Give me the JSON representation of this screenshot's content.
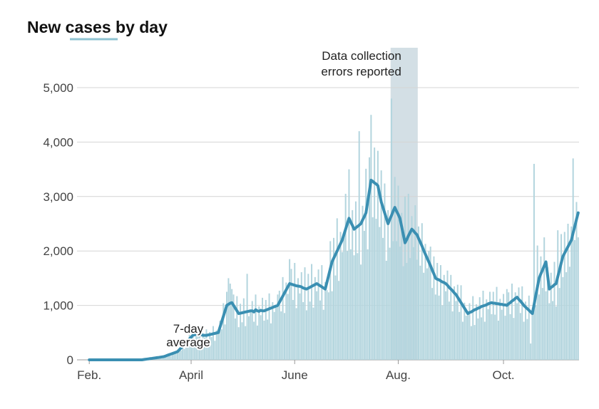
{
  "chart_data": {
    "type": "bar",
    "title": "New cases by day",
    "categories": [
      "Feb.",
      null,
      null,
      null,
      null,
      null,
      null,
      null,
      null,
      null,
      null,
      null,
      null,
      null,
      null,
      null,
      null,
      null,
      null,
      null,
      null,
      null,
      null,
      null,
      null,
      null,
      null,
      null,
      null,
      null,
      null,
      null,
      null,
      null,
      null,
      null,
      null,
      null,
      null,
      null,
      null,
      null,
      null,
      null,
      null,
      null,
      null,
      null,
      null,
      null,
      null,
      null,
      null,
      null,
      null,
      null,
      null,
      null,
      null,
      null,
      "April",
      null,
      null,
      null,
      null,
      null,
      null,
      null,
      null,
      null,
      null,
      null,
      null,
      null,
      null,
      null,
      null,
      null,
      null,
      null,
      null,
      null,
      null,
      null,
      null,
      null,
      null,
      null,
      null,
      null,
      null,
      null,
      null,
      null,
      null,
      null,
      null,
      null,
      null,
      null,
      null,
      null,
      null,
      null,
      null,
      null,
      null,
      null,
      null,
      null,
      null,
      null,
      null,
      null,
      null,
      null,
      null,
      null,
      null,
      null,
      null,
      "June",
      null,
      null,
      null,
      null,
      null,
      null,
      null,
      null,
      null,
      null,
      null,
      null,
      null,
      null,
      null,
      null,
      null,
      null,
      null,
      null,
      null,
      null,
      null,
      null,
      null,
      null,
      null,
      null,
      null,
      null,
      null,
      null,
      null,
      null,
      null,
      null,
      null,
      null,
      null,
      null,
      null,
      null,
      null,
      null,
      null,
      null,
      null,
      null,
      null,
      null,
      null,
      null,
      null,
      null,
      null,
      null,
      null,
      null,
      null,
      null,
      "Aug.",
      null,
      null,
      null,
      null,
      null,
      null,
      null,
      null,
      null,
      null,
      null,
      null,
      null,
      null,
      null,
      null,
      null,
      null,
      null,
      null,
      null,
      null,
      null,
      null,
      null,
      null,
      null,
      null,
      null,
      null,
      null,
      null,
      null,
      null,
      null,
      null,
      null,
      null,
      null,
      null,
      null,
      null,
      null,
      null,
      null,
      null,
      null,
      null,
      null,
      null,
      null,
      null,
      null,
      null,
      null,
      null,
      null,
      null,
      null,
      null,
      null,
      "Oct.",
      null,
      null,
      null,
      null,
      null,
      null,
      null,
      null,
      null,
      null,
      null,
      null,
      null,
      null,
      null,
      null,
      null,
      null,
      null,
      null,
      null,
      null,
      null,
      null,
      null,
      null,
      null,
      null,
      null,
      null,
      null,
      null,
      null,
      null,
      null,
      null,
      null,
      null,
      null,
      null,
      null,
      null,
      null,
      null
    ],
    "daily": {
      "color": "#b3d5de",
      "values": [
        0,
        0,
        0,
        0,
        0,
        0,
        0,
        0,
        0,
        0,
        0,
        0,
        0,
        0,
        0,
        0,
        0,
        0,
        0,
        0,
        0,
        0,
        0,
        0,
        0,
        0,
        0,
        0,
        0,
        0,
        0,
        0,
        0,
        10,
        20,
        10,
        30,
        20,
        40,
        30,
        50,
        40,
        60,
        50,
        70,
        90,
        60,
        120,
        70,
        140,
        110,
        150,
        160,
        200,
        170,
        320,
        200,
        350,
        380,
        460,
        330,
        540,
        320,
        520,
        430,
        620,
        370,
        490,
        410,
        560,
        380,
        510,
        420,
        620,
        350,
        540,
        480,
        720,
        560,
        1040,
        650,
        1250,
        1500,
        1400,
        1300,
        1200,
        760,
        1170,
        600,
        1030,
        690,
        1130,
        620,
        1580,
        800,
        900,
        1080,
        700,
        1200,
        630,
        980,
        820,
        1140,
        720,
        1100,
        740,
        1220,
        670,
        1060,
        880,
        990,
        1200,
        1270,
        890,
        1520,
        860,
        1420,
        1210,
        1850,
        1670,
        1100,
        1780,
        950,
        1500,
        1220,
        1610,
        1060,
        1700,
        910,
        1580,
        1070,
        1760,
        960,
        1520,
        1260,
        1660,
        1090,
        1740,
        920,
        1430,
        1280,
        1240,
        2180,
        1260,
        2240,
        1550,
        2600,
        1450,
        2350,
        1980,
        2300,
        3050,
        2000,
        3500,
        2030,
        2750,
        1920,
        2910,
        1960,
        4200,
        1750,
        2830,
        2370,
        3510,
        2030,
        3720,
        4500,
        2620,
        3900,
        2590,
        3840,
        2440,
        3480,
        2240,
        3240,
        1820,
        2750,
        2060,
        4800,
        2180,
        3360,
        2180,
        3200,
        2080,
        2700,
        1720,
        3000,
        1780,
        3050,
        1870,
        2640,
        2070,
        2840,
        1840,
        2450,
        1730,
        2510,
        1600,
        2130,
        1680,
        2000,
        2080,
        1320,
        1900,
        1200,
        1780,
        1180,
        1740,
        1000,
        1560,
        1260,
        1640,
        1070,
        1560,
        890,
        1350,
        1080,
        1380,
        880,
        1370,
        700,
        1050,
        810,
        850,
        1040,
        620,
        1170,
        640,
        1020,
        760,
        1150,
        780,
        1270,
        700,
        1110,
        930,
        1250,
        840,
        1250,
        830,
        1340,
        720,
        1120,
        920,
        1210,
        810,
        1300,
        1240,
        840,
        1400,
        770,
        1240,
        1040,
        1330,
        860,
        1350,
        700,
        1070,
        750,
        1180,
        300,
        940,
        3600,
        1000,
        2100,
        1200,
        1900,
        1320,
        2250,
        1260,
        1700,
        1040,
        1600,
        1080,
        1800,
        980,
        2380,
        1320,
        2310,
        1520,
        2350,
        1610,
        2500,
        1710,
        2450,
        3700,
        2200,
        2900,
        2250
      ]
    },
    "average": {
      "label": [
        "7-day",
        "average"
      ],
      "color": "#3a8fb2",
      "values": [
        0,
        0,
        0,
        0,
        0,
        0,
        0,
        0,
        0,
        0,
        0,
        0,
        0,
        0,
        0,
        0,
        0,
        0,
        0,
        0,
        0,
        0,
        0,
        0,
        0,
        0,
        0,
        0,
        0,
        0,
        0,
        0,
        5,
        10,
        14,
        18,
        23,
        27,
        32,
        36,
        41,
        45,
        50,
        55,
        60,
        71,
        83,
        94,
        105,
        116,
        128,
        139,
        150,
        183,
        217,
        250,
        283,
        317,
        350,
        383,
        417,
        450,
        460,
        470,
        480,
        470,
        460,
        450,
        450,
        450,
        457,
        464,
        471,
        479,
        486,
        493,
        500,
        600,
        700,
        800,
        900,
        1000,
        1020,
        1040,
        1050,
        1000,
        950,
        900,
        850,
        857,
        864,
        871,
        879,
        886,
        893,
        900,
        900,
        880,
        920,
        900,
        890,
        910,
        900,
        900,
        913,
        925,
        938,
        950,
        963,
        975,
        988,
        1000,
        1057,
        1114,
        1171,
        1229,
        1286,
        1343,
        1400,
        1390,
        1380,
        1370,
        1360,
        1355,
        1350,
        1340,
        1320,
        1310,
        1300,
        1317,
        1333,
        1350,
        1367,
        1383,
        1400,
        1380,
        1360,
        1340,
        1320,
        1300,
        1425,
        1550,
        1675,
        1800,
        1867,
        1933,
        2000,
        2067,
        2133,
        2200,
        2300,
        2400,
        2500,
        2600,
        2530,
        2470,
        2400,
        2425,
        2450,
        2475,
        2500,
        2570,
        2630,
        2700,
        2900,
        3100,
        3300,
        3280,
        3250,
        3230,
        3200,
        3050,
        2900,
        2800,
        2700,
        2600,
        2500,
        2580,
        2650,
        2730,
        2800,
        2730,
        2670,
        2600,
        2450,
        2300,
        2150,
        2210,
        2280,
        2340,
        2400,
        2370,
        2330,
        2300,
        2230,
        2160,
        2090,
        2010,
        1940,
        1870,
        1800,
        1730,
        1650,
        1580,
        1500,
        1480,
        1470,
        1450,
        1430,
        1420,
        1400,
        1370,
        1330,
        1300,
        1270,
        1230,
        1200,
        1150,
        1100,
        1050,
        1000,
        950,
        900,
        850,
        870,
        880,
        900,
        920,
        930,
        950,
        960,
        980,
        990,
        1000,
        1010,
        1030,
        1040,
        1050,
        1040,
        1040,
        1030,
        1030,
        1020,
        1020,
        1010,
        1010,
        1000,
        1030,
        1050,
        1080,
        1100,
        1130,
        1150,
        1110,
        1080,
        1040,
        1000,
        970,
        940,
        910,
        880,
        850,
        1010,
        1180,
        1340,
        1500,
        1580,
        1650,
        1730,
        1800,
        1550,
        1300,
        1330,
        1350,
        1380,
        1400,
        1530,
        1650,
        1780,
        1900,
        1960,
        2020,
        2080,
        2140,
        2200,
        2330,
        2450,
        2580,
        2700
      ]
    },
    "highlight": {
      "text": [
        "Data collection",
        "errors reported"
      ],
      "from": 178,
      "to": 193,
      "color": "#d3dfe5"
    },
    "ylim": [
      0,
      5000
    ],
    "yticks": [
      0,
      {
        "value": 1000,
        "label": "1,000"
      },
      {
        "value": 2000,
        "label": "2,000"
      },
      {
        "value": 3000,
        "label": "3,000"
      },
      {
        "value": 4000,
        "label": "4,000"
      },
      {
        "value": 5000,
        "label": "5,000"
      }
    ],
    "grid": true
  }
}
